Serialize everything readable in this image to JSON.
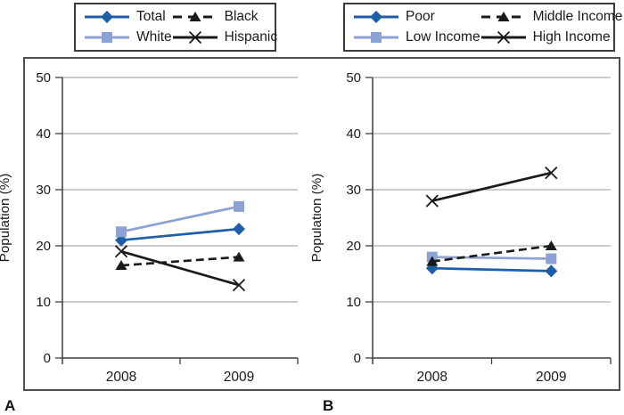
{
  "figure": {
    "background": "#ffffff"
  },
  "colors": {
    "series_dark_blue": "#1e5ea6",
    "series_light_blue": "#8da2d4",
    "series_black": "#1a1a1a",
    "gridline": "#9a9a9a",
    "axis": "#3f3f3f",
    "frame_border": "#4f4f4f",
    "legend_border": "#3a3a3a",
    "text": "#1a1a1a"
  },
  "chart_data": [
    {
      "id": "A",
      "type": "line",
      "panel_label": "A",
      "categories": [
        "2008",
        "2009"
      ],
      "xlabel": "",
      "ylabel": "Population (%)",
      "ylim": [
        0,
        50
      ],
      "yticks": [
        0,
        10,
        20,
        30,
        40,
        50
      ],
      "grid": true,
      "legend_position": "top-boxed",
      "series": [
        {
          "name": "Total",
          "values": [
            21,
            23
          ],
          "color": "#1e5ea6",
          "marker": "diamond",
          "line": "solid"
        },
        {
          "name": "White",
          "values": [
            22.5,
            27
          ],
          "color": "#8da2d4",
          "marker": "square",
          "line": "solid"
        },
        {
          "name": "Black",
          "values": [
            16.5,
            18
          ],
          "color": "#1a1a1a",
          "marker": "triangle",
          "line": "dashed"
        },
        {
          "name": "Hispanic",
          "values": [
            19,
            13
          ],
          "color": "#1a1a1a",
          "marker": "x",
          "line": "solid"
        }
      ]
    },
    {
      "id": "B",
      "type": "line",
      "panel_label": "B",
      "categories": [
        "2008",
        "2009"
      ],
      "xlabel": "",
      "ylabel": "Population (%)",
      "ylim": [
        0,
        50
      ],
      "yticks": [
        0,
        10,
        20,
        30,
        40,
        50
      ],
      "grid": true,
      "legend_position": "top-boxed",
      "series": [
        {
          "name": "Poor",
          "values": [
            16,
            15.5
          ],
          "color": "#1e5ea6",
          "marker": "diamond",
          "line": "solid"
        },
        {
          "name": "Low Income",
          "values": [
            18,
            17.7
          ],
          "color": "#8da2d4",
          "marker": "square",
          "line": "solid"
        },
        {
          "name": "Middle Income",
          "values": [
            17.2,
            20
          ],
          "color": "#1a1a1a",
          "marker": "triangle",
          "line": "dashed"
        },
        {
          "name": "High Income",
          "values": [
            28,
            33
          ],
          "color": "#1a1a1a",
          "marker": "x",
          "line": "solid"
        }
      ]
    }
  ]
}
